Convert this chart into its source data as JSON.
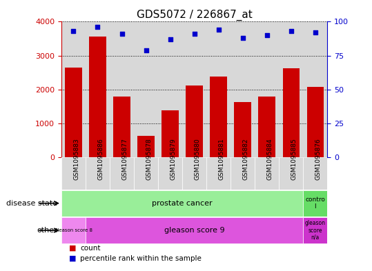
{
  "title": "GDS5072 / 226867_at",
  "samples": [
    "GSM1095883",
    "GSM1095886",
    "GSM1095877",
    "GSM1095878",
    "GSM1095879",
    "GSM1095880",
    "GSM1095881",
    "GSM1095882",
    "GSM1095884",
    "GSM1095885",
    "GSM1095876"
  ],
  "counts": [
    2650,
    3560,
    1780,
    620,
    1380,
    2120,
    2380,
    1620,
    1780,
    2620,
    2080
  ],
  "percentile_ranks": [
    93,
    96,
    91,
    79,
    87,
    91,
    94,
    88,
    90,
    93,
    92
  ],
  "bar_color": "#cc0000",
  "dot_color": "#0000cc",
  "ylim_left": [
    0,
    4000
  ],
  "ylim_right": [
    0,
    100
  ],
  "yticks_left": [
    0,
    1000,
    2000,
    3000,
    4000
  ],
  "yticks_right": [
    0,
    25,
    50,
    75,
    100
  ],
  "grid_color": "#000000",
  "disease_state_labels": [
    "prostate cancer",
    "contro\nl"
  ],
  "other_labels": [
    "gleason score 8",
    "gleason score 9",
    "gleason\nscore\nn/a"
  ],
  "row_label_disease": "disease state",
  "row_label_other": "other",
  "legend_count": "count",
  "legend_percentile": "percentile rank within the sample",
  "bg_color": "#ffffff",
  "col_bg": "#d8d8d8",
  "disease_color_main": "#99ee99",
  "disease_color_ctrl": "#66dd66",
  "gleason8_color": "#ee88ee",
  "gleason9_color": "#dd55dd",
  "gleasonNA_color": "#cc33cc",
  "axes_label_color_left": "#cc0000",
  "axes_label_color_right": "#0000cc"
}
